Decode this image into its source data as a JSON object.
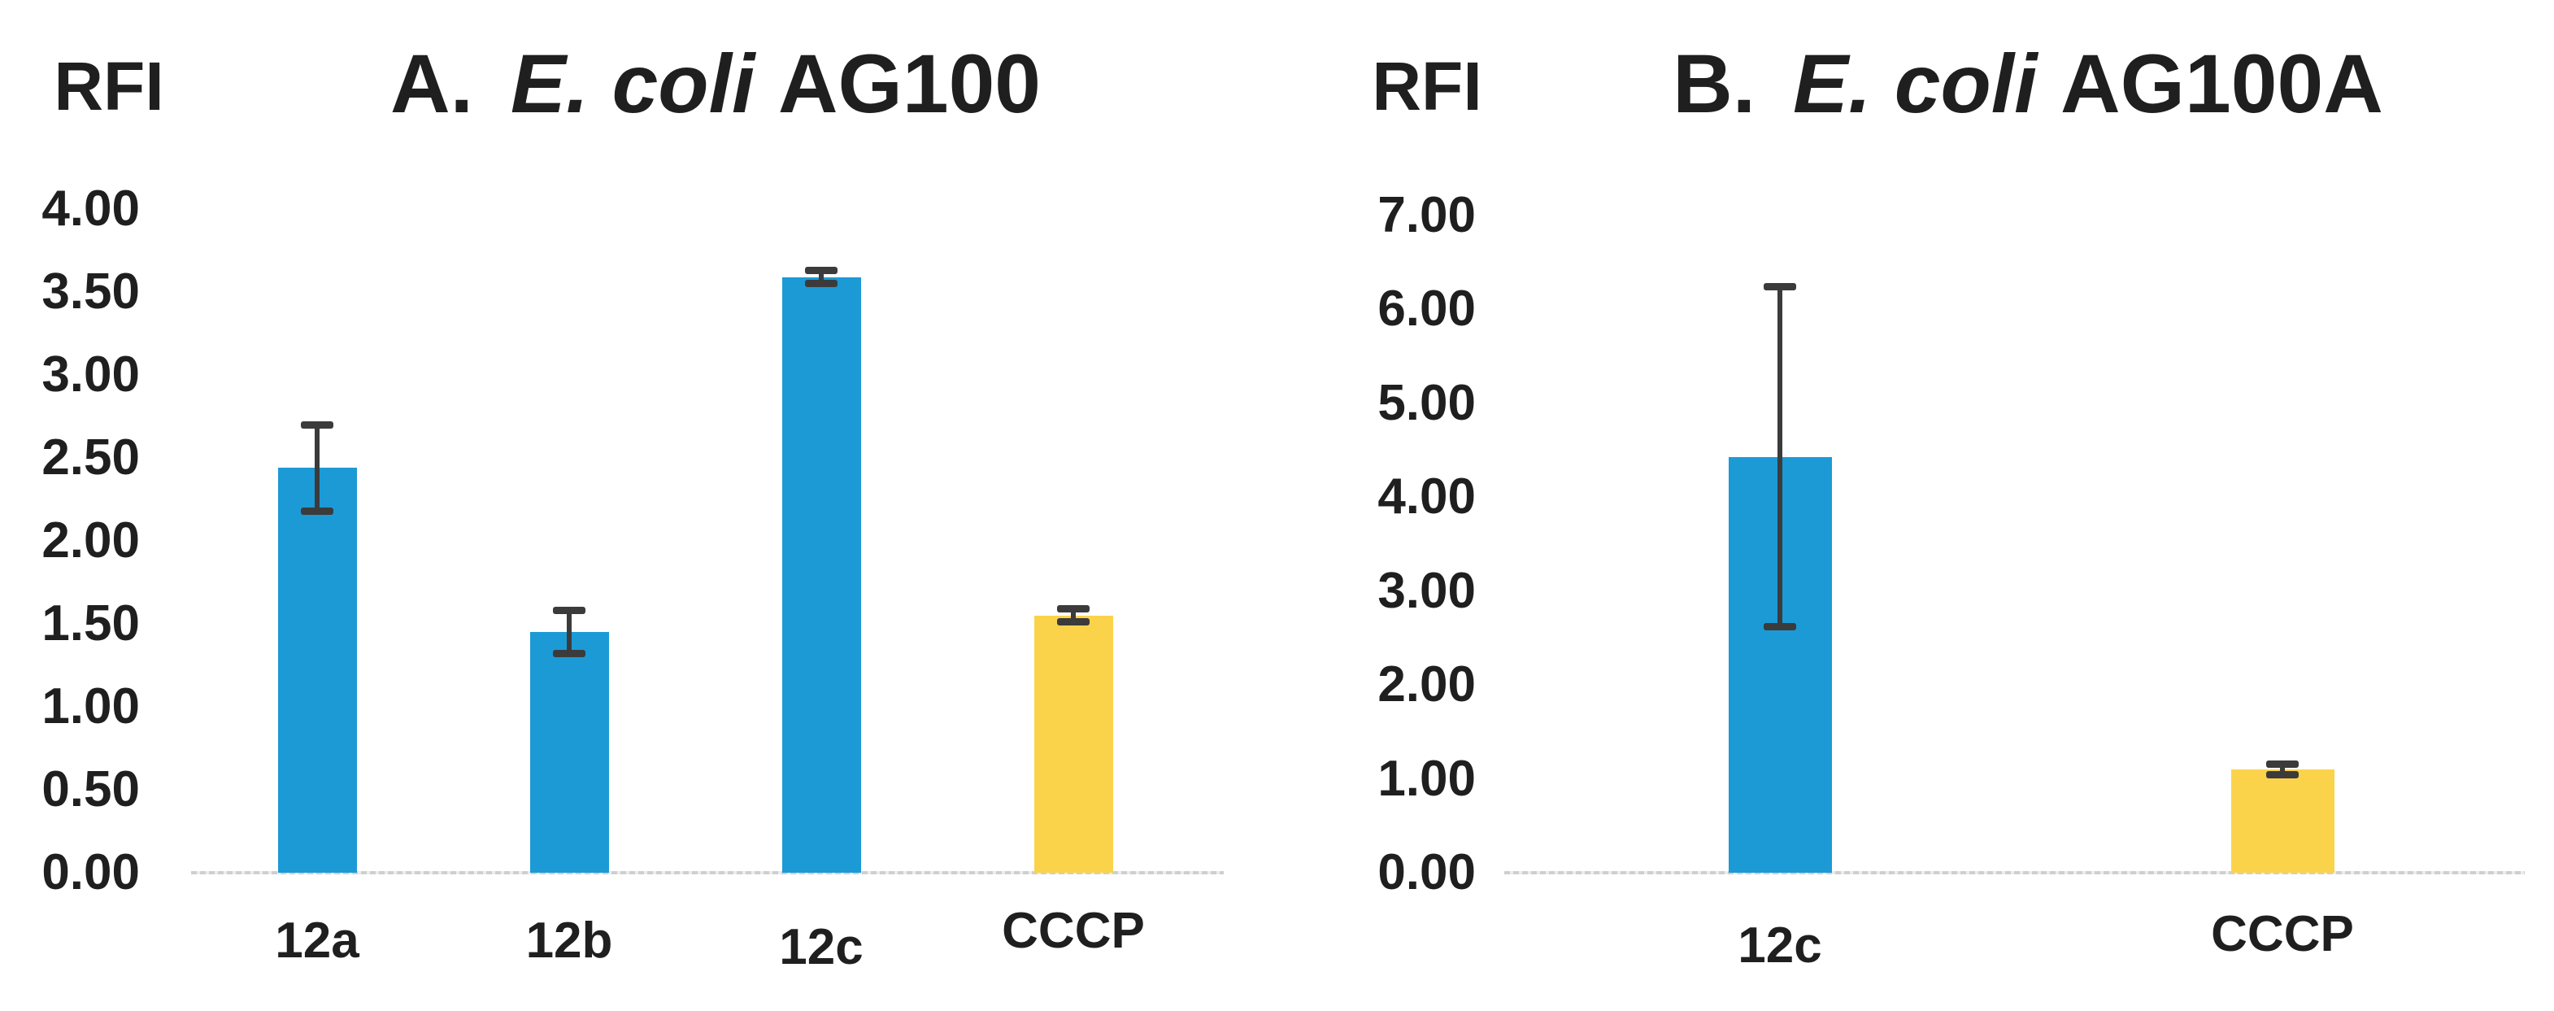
{
  "figure_title": "RFI bar charts for E. coli strains",
  "colors": {
    "bar_blue": "#1C9AD6",
    "bar_yellow": "#FBD34B",
    "error_bar": "#3B3B3B",
    "axis_line": "#D9D9D9",
    "text": "#1F1F1F"
  },
  "chart_data": [
    {
      "id": "A",
      "type": "bar",
      "y_axis_label": "RFI",
      "title_prefix": "A.",
      "title_italic": "E. coli",
      "title_suffix": "AG100",
      "categories": [
        "12a",
        "12b",
        "12c",
        "CCCP"
      ],
      "values": [
        2.44,
        1.45,
        3.59,
        1.55
      ],
      "errors": [
        0.26,
        0.13,
        0.04,
        0.04
      ],
      "bar_colors": [
        "#1C9AD6",
        "#1C9AD6",
        "#1C9AD6",
        "#FBD34B"
      ],
      "ylim": [
        0,
        4
      ],
      "ytick_step": 0.5,
      "ytick_labels": [
        "0.00",
        "0.50",
        "1.00",
        "1.50",
        "2.00",
        "2.50",
        "3.00",
        "3.50",
        "4.00"
      ],
      "grid": false,
      "legend": "none"
    },
    {
      "id": "B",
      "type": "bar",
      "y_axis_label": "RFI",
      "title_prefix": "B.",
      "title_italic": "E. coli",
      "title_suffix": "AG100A",
      "categories": [
        "12c",
        "CCCP"
      ],
      "values": [
        4.43,
        1.1
      ],
      "errors": [
        1.81,
        0.06
      ],
      "bar_colors": [
        "#1C9AD6",
        "#FBD34B"
      ],
      "ylim": [
        0,
        7
      ],
      "ytick_step": 1,
      "ytick_labels": [
        "0.00",
        "1.00",
        "2.00",
        "3.00",
        "4.00",
        "5.00",
        "6.00",
        "7.00"
      ],
      "grid": false,
      "legend": "none"
    }
  ]
}
